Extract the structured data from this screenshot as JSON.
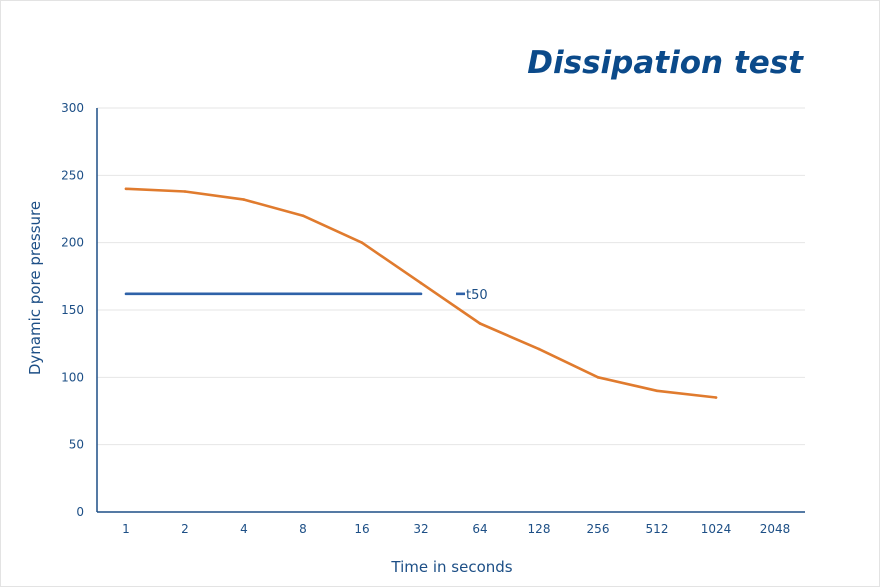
{
  "chart_data": {
    "type": "line",
    "title": "Dissipation test",
    "xlabel": "Time in seconds",
    "ylabel": "Dynamic pore pressure",
    "x_scale": "log2",
    "categories": [
      "1",
      "2",
      "4",
      "8",
      "16",
      "32",
      "64",
      "128",
      "256",
      "512",
      "1024",
      "2048"
    ],
    "ylim": [
      0,
      300
    ],
    "yticks": [
      0,
      50,
      100,
      150,
      200,
      250,
      300
    ],
    "grid": true,
    "series": [
      {
        "color": "#e07b2e",
        "x": [
          1,
          2,
          4,
          8,
          16,
          32,
          64,
          128,
          256,
          512,
          1024
        ],
        "values": [
          240,
          238,
          232,
          220,
          200,
          170,
          140,
          121,
          100,
          90,
          85
        ]
      }
    ],
    "annotations": [
      {
        "label": "t50",
        "y": 162,
        "x_from": 1,
        "x_to": 32,
        "color": "#2f62a8"
      }
    ]
  }
}
